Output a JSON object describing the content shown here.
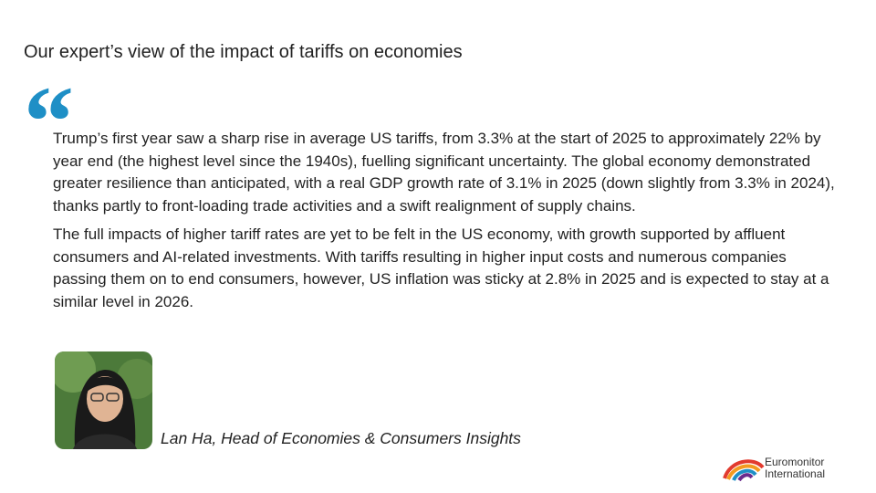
{
  "header": {
    "title": "Our expert’s view of the impact of tariffs on economies"
  },
  "quote": {
    "mark": "“",
    "paragraphs": [
      "Trump’s first year saw a sharp rise in average US tariffs, from 3.3% at the start of 2025 to approximately 22% by year end (the highest level since the 1940s), fuelling significant uncertainty. The global economy demonstrated greater resilience than anticipated, with a real GDP growth rate of 3.1% in 2025 (down slightly from 3.3% in 2024), thanks partly to front-loading trade activities and a swift realignment of supply chains.",
      "The full impacts of higher tariff rates are yet to be felt in the US economy, with growth supported by affluent consumers and AI-related investments. With tariffs resulting in higher input costs and numerous companies passing them on to end consumers, however, US inflation was sticky at 2.8% in 2025 and is expected to stay at a similar level in 2026."
    ]
  },
  "attribution": "Lan Ha, Head of Economies & Consumers Insights",
  "logo": {
    "lines": [
      "Euromonitor",
      "International"
    ]
  }
}
